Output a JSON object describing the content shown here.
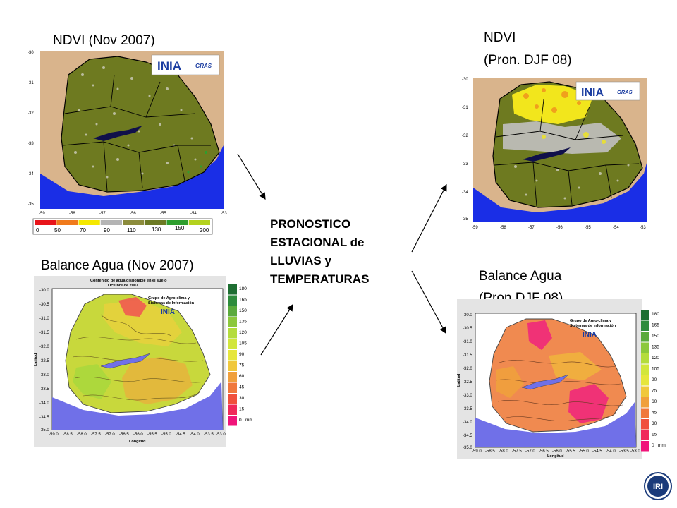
{
  "titles": {
    "ndvi_nov": "NDVI (Nov 2007)",
    "ndvi_pron_l1": "NDVI",
    "ndvi_pron_l2": "(Pron. DJF 08)",
    "balance_nov": "Balance Agua (Nov 2007)",
    "balance_pron_l1": "Balance Agua",
    "balance_pron_l2": "(Pron DJF 08)"
  },
  "center": {
    "line1": "PRONOSTICO",
    "line2": "ESTACIONAL de",
    "line3": "LLUVIAS y",
    "line4": "TEMPERATURAS"
  },
  "ndvi_map": {
    "lat_ticks": [
      "-30",
      "-31",
      "-32",
      "-33",
      "-34",
      "-35"
    ],
    "lon_ticks": [
      "-59",
      "-58",
      "-57",
      "-56",
      "-55",
      "-54",
      "-53"
    ],
    "scale_values": [
      "0",
      "50",
      "70",
      "90",
      "110",
      "130",
      "150",
      "200"
    ],
    "scale_colors": [
      "#e8141a",
      "#f07a1c",
      "#f5e800",
      "#b4b4b4",
      "#8c8c3c",
      "#6c7a24",
      "#2e9e2e",
      "#b4d21e"
    ],
    "logo_text": "INIA",
    "logo_sub": "GRAS"
  },
  "balance_map": {
    "title_l1": "Contenido de agua disponible en el suelo",
    "title_l2_nov": "Octubre de 2007",
    "logo_l1": "Grupo de Agro-clima y",
    "logo_l2": "Sistemas de Información",
    "logo_text": "INIA",
    "lat_ticks": [
      "-30.0",
      "-30.5",
      "-31.0",
      "-31.5",
      "-32.0",
      "-32.5",
      "-33.0",
      "-33.5",
      "-34.0",
      "-34.5",
      "-35.0"
    ],
    "lon_ticks": [
      "-59.0",
      "-58.5",
      "-58.0",
      "-57.5",
      "-57.0",
      "-56.5",
      "-56.0",
      "-55.5",
      "-55.0",
      "-54.5",
      "-54.0",
      "-53.5",
      "-53.0"
    ],
    "xlabel": "Longitud",
    "ylabel": "Latitud",
    "legend_values": [
      "180",
      "165",
      "150",
      "135",
      "120",
      "105",
      "90",
      "75",
      "60",
      "45",
      "30",
      "15",
      "0"
    ],
    "legend_unit": "mm",
    "legend_colors": [
      "#1e6e32",
      "#2e8c3c",
      "#5aaa3c",
      "#8cc83c",
      "#b4dc3c",
      "#d2e63c",
      "#e6e63c",
      "#f0c83c",
      "#f0a03c",
      "#f0783c",
      "#f0503c",
      "#f0285a",
      "#f0147a"
    ]
  },
  "footer": {
    "logo": "IRI"
  }
}
